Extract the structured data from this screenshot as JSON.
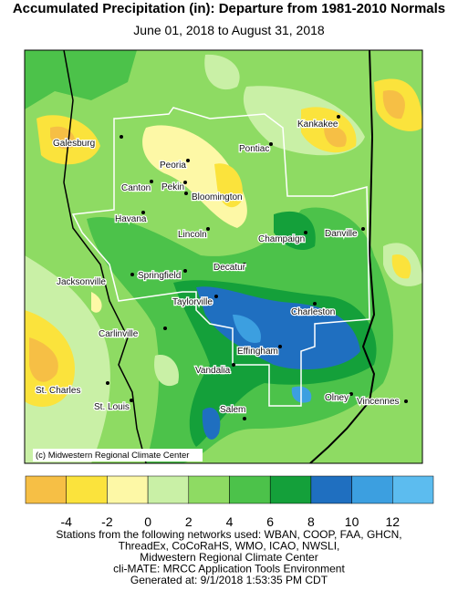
{
  "header": {
    "title": "Accumulated Precipitation (in): Departure from 1981-2010 Normals",
    "subtitle": "June 01, 2018 to August 31, 2018"
  },
  "map": {
    "cities": [
      "Galesburg",
      "Peoria",
      "Canton",
      "Pekin",
      "Pontiac",
      "Kankakee",
      "Bloomington",
      "Havana",
      "Lincoln",
      "Champaign",
      "Danville",
      "Springfield",
      "Jacksonville",
      "Decatur",
      "Taylorville",
      "Charleston",
      "Carlinville",
      "Effingham",
      "Vandalia",
      "St. Charles",
      "St. Louis",
      "Olney",
      "Vincennes",
      "Salem"
    ],
    "copyright": "(c) Midwestern Regional Climate Center"
  },
  "legend": {
    "colors": [
      "#f6bf45",
      "#fbe33c",
      "#fdf8a6",
      "#c9f0a6",
      "#8edb63",
      "#4cc24a",
      "#14a03a",
      "#1f6fc0",
      "#3c9fe0",
      "#5cbcef"
    ],
    "ticks": [
      -4,
      -2,
      0,
      2,
      4,
      6,
      8,
      10,
      12
    ]
  },
  "footer": {
    "lines": [
      "Stations from the following networks used: WBAN, COOP, FAA, GHCN,",
      "ThreadEx, CoCoRaHS, WMO, ICAO, NWSLI,",
      "Midwestern Regional Climate Center",
      "cli-MATE: MRCC Application Tools Environment",
      "Generated at: 9/1/2018 1:53:35 PM CDT"
    ]
  }
}
